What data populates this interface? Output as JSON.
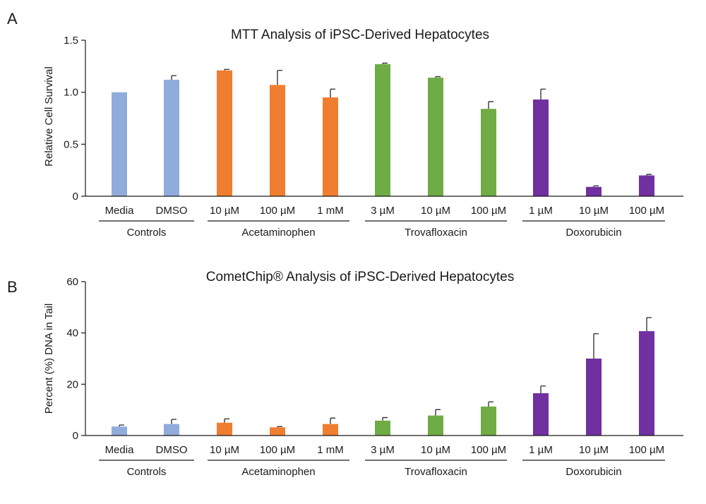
{
  "colors": {
    "controls": "#90acdc",
    "acetaminophen": "#f07e30",
    "trovafloxacin": "#6fac46",
    "doxorubicin": "#7030a0"
  },
  "chart_data": [
    {
      "panel": "A",
      "type": "bar",
      "title": "MTT Analysis of iPSC-Derived Hepatocytes",
      "title_suffix": "",
      "ylabel": "Relative Cell Survival",
      "xlabel": "",
      "ylim": [
        0,
        1.5
      ],
      "yticks": [
        0,
        0.5,
        1.0,
        1.5
      ],
      "ytick_labels": [
        "0",
        "0.5",
        "1.0",
        "1.5"
      ],
      "categories": [
        "Media",
        "DMSO",
        "10 µM",
        "100 µM",
        "1 mM",
        "3 µM",
        "10 µM",
        "100 µM",
        "1 µM",
        "10 µM",
        "100 µM"
      ],
      "values": [
        1.0,
        1.12,
        1.21,
        1.07,
        0.95,
        1.27,
        1.14,
        0.84,
        0.93,
        0.09,
        0.2
      ],
      "errors": [
        0,
        0.04,
        0.01,
        0.14,
        0.08,
        0.01,
        0.01,
        0.07,
        0.1,
        0.01,
        0.01
      ],
      "groups": [
        {
          "name": "Controls",
          "color_key": "controls",
          "members": [
            0,
            1
          ]
        },
        {
          "name": "Acetaminophen",
          "color_key": "acetaminophen",
          "members": [
            2,
            3,
            4
          ]
        },
        {
          "name": "Trovafloxacin",
          "color_key": "trovafloxacin",
          "members": [
            5,
            6,
            7
          ]
        },
        {
          "name": "Doxorubicin",
          "color_key": "doxorubicin",
          "members": [
            8,
            9,
            10
          ]
        }
      ]
    },
    {
      "panel": "B",
      "type": "bar",
      "title": "CometChip",
      "title_suffix": "® Analysis of iPSC-Derived Hepatocytes",
      "ylabel": "Percent (%) DNA in Tail",
      "xlabel": "",
      "ylim": [
        0,
        60
      ],
      "yticks": [
        0,
        20,
        40,
        60
      ],
      "ytick_labels": [
        "0",
        "20",
        "40",
        "60"
      ],
      "categories": [
        "Media",
        "DMSO",
        "10 µM",
        "100 µM",
        "1 mM",
        "3 µM",
        "10 µM",
        "100 µM",
        "1 µM",
        "10 µM",
        "100 µM"
      ],
      "values": [
        3.5,
        4.5,
        5.0,
        3.2,
        4.5,
        5.8,
        7.8,
        11.3,
        16.5,
        30.0,
        40.7
      ],
      "errors": [
        0.6,
        1.8,
        1.5,
        0.3,
        2.3,
        1.2,
        2.3,
        1.8,
        2.8,
        9.7,
        5.3
      ],
      "groups": [
        {
          "name": "Controls",
          "color_key": "controls",
          "members": [
            0,
            1
          ]
        },
        {
          "name": "Acetaminophen",
          "color_key": "acetaminophen",
          "members": [
            2,
            3,
            4
          ]
        },
        {
          "name": "Trovafloxacin",
          "color_key": "trovafloxacin",
          "members": [
            5,
            6,
            7
          ]
        },
        {
          "name": "Doxorubicin",
          "color_key": "doxorubicin",
          "members": [
            8,
            9,
            10
          ]
        }
      ]
    }
  ]
}
